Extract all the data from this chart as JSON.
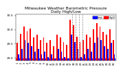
{
  "title": "Milwaukee Weather Barometric Pressure\nDaily High/Low",
  "title_fontsize": 4.2,
  "bar_width": 0.38,
  "background_color": "#ffffff",
  "high_color": "#ff0000",
  "low_color": "#0000ff",
  "legend_high": "High",
  "legend_low": "Low",
  "ylim": [
    28.9,
    30.55
  ],
  "ybase": 28.9,
  "yticks": [
    29.0,
    29.5,
    30.0,
    30.5
  ],
  "ytick_labels": [
    "29.0",
    "29.5",
    "30.0",
    "30.5"
  ],
  "ylabel_fontsize": 3.2,
  "xlabel_fontsize": 2.8,
  "dashed_lines": [
    16.5,
    17.5,
    18.5,
    19.5
  ],
  "highs": [
    29.52,
    29.85,
    30.12,
    29.93,
    30.03,
    29.72,
    29.82,
    29.62,
    29.72,
    29.52,
    29.62,
    29.42,
    29.82,
    29.72,
    29.55,
    29.45,
    30.35,
    30.15,
    29.75,
    29.55,
    29.62,
    29.82,
    29.72,
    30.02,
    30.22,
    30.12,
    29.92,
    29.82,
    30.02,
    29.62
  ],
  "lows": [
    29.12,
    29.32,
    29.62,
    29.52,
    29.42,
    29.22,
    29.32,
    29.12,
    29.22,
    29.02,
    29.12,
    28.92,
    29.32,
    29.22,
    29.02,
    28.95,
    29.82,
    29.55,
    29.32,
    29.02,
    29.12,
    29.32,
    29.22,
    29.52,
    29.72,
    29.62,
    29.42,
    29.32,
    29.52,
    29.12
  ],
  "xlabels": [
    "1",
    "2",
    "3",
    "4",
    "5",
    "6",
    "7",
    "8",
    "9",
    "10",
    "11",
    "12",
    "13",
    "14",
    "15",
    "16",
    "17",
    "18",
    "19",
    "20",
    "21",
    "22",
    "23",
    "24",
    "25",
    "26",
    "27",
    "28",
    "29",
    "30"
  ]
}
